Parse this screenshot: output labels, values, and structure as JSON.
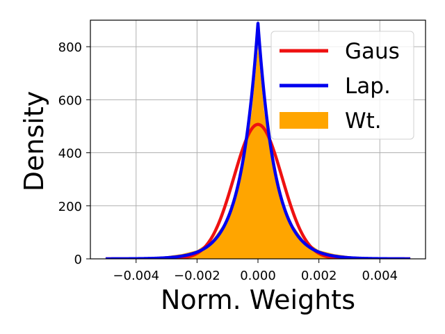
{
  "chart_data": {
    "type": "area",
    "title": "",
    "xlabel": "Norm. Weights",
    "ylabel": "Density",
    "xlim": [
      -0.0055,
      0.0055
    ],
    "ylim": [
      0,
      900
    ],
    "x_ticks": [
      -0.004,
      -0.002,
      0.0,
      0.002,
      0.004
    ],
    "x_tick_labels": [
      "−0.004",
      "−0.002",
      "0.000",
      "0.002",
      "0.004"
    ],
    "y_ticks": [
      0,
      200,
      400,
      600,
      800
    ],
    "y_tick_labels": [
      "0",
      "200",
      "400",
      "600",
      "800"
    ],
    "grid": true,
    "legend_position": "upper right",
    "series": [
      {
        "name": "Gaus",
        "kind": "line",
        "color": "#ee1111",
        "distribution": "gaussian",
        "mean": 0.0,
        "std": 0.00079,
        "peak": 507,
        "x_range": [
          -0.005,
          0.005
        ]
      },
      {
        "name": "Lap.",
        "kind": "line",
        "color": "#0000ee",
        "distribution": "laplace",
        "mean": 0.0,
        "scale": 0.000563,
        "peak": 888,
        "x_range": [
          -0.005,
          0.005
        ]
      },
      {
        "name": "Wt.",
        "kind": "area",
        "color": "#ffa500",
        "x": [
          -0.005,
          -0.004,
          -0.003,
          -0.0025,
          -0.002,
          -0.0015,
          -0.001,
          -0.0008,
          -0.0006,
          -0.0004,
          -0.0002,
          -0.0001,
          0.0,
          0.0001,
          0.0002,
          0.0004,
          0.0006,
          0.0008,
          0.001,
          0.0015,
          0.002,
          0.0025,
          0.003,
          0.004,
          0.005
        ],
        "y": [
          1,
          3,
          10,
          18,
          32,
          70,
          150,
          220,
          300,
          410,
          560,
          680,
          800,
          680,
          560,
          410,
          300,
          220,
          150,
          70,
          32,
          18,
          10,
          3,
          1
        ]
      }
    ]
  }
}
